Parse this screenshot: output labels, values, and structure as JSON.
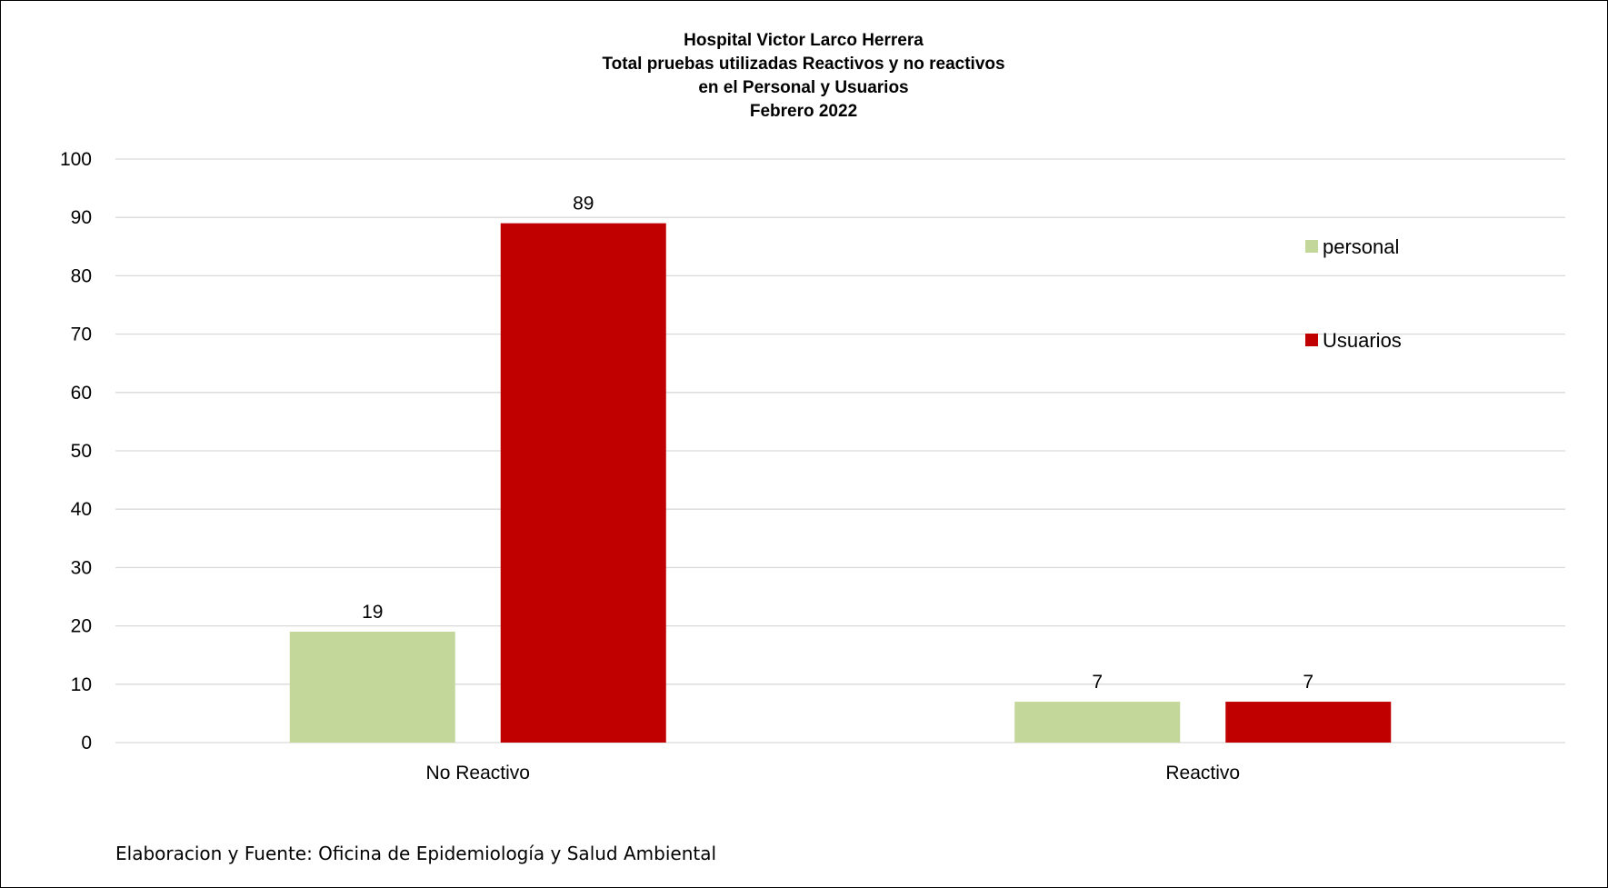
{
  "chart_data": {
    "type": "bar",
    "title_lines": [
      "Hospital Victor Larco Herrera",
      "Total pruebas utilizadas Reactivos y no reactivos",
      "en el Personal y Usuarios",
      "Febrero 2022"
    ],
    "categories": [
      "No Reactivo",
      "Reactivo"
    ],
    "series": [
      {
        "name": "personal",
        "values": [
          19,
          7
        ],
        "color": "#c4d79b"
      },
      {
        "name": "Usuarios",
        "values": [
          89,
          7
        ],
        "color": "#c00000"
      }
    ],
    "ylim": [
      0,
      100
    ],
    "yticks": [
      0,
      10,
      20,
      30,
      40,
      50,
      60,
      70,
      80,
      90,
      100
    ],
    "grid": true,
    "legend_position": "right",
    "xlabel": "",
    "ylabel": "",
    "source": "Elaboracion y Fuente: Oficina de Epidemiología y Salud Ambiental"
  }
}
